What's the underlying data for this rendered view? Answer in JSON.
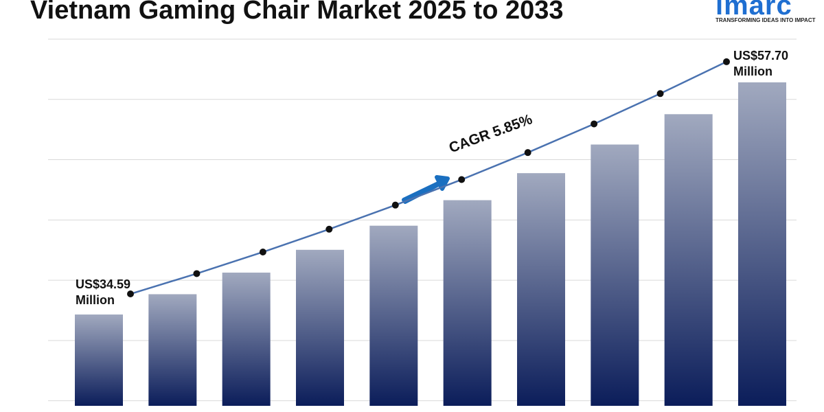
{
  "chart_data": {
    "type": "bar",
    "title": "Vietnam Gaming Chair Market 2025 to 2033",
    "annotation": "CAGR 5.85%",
    "categories": [
      null,
      null,
      null,
      null,
      null,
      null,
      null,
      null,
      null,
      null
    ],
    "values": [
      34.59,
      36.61,
      38.76,
      41.03,
      43.43,
      45.97,
      48.66,
      51.51,
      54.53,
      57.7
    ],
    "value_labels": [
      "US$34.59 Million",
      null,
      null,
      null,
      null,
      null,
      null,
      null,
      null,
      "US$57.70 Million"
    ],
    "colors": [
      "#a1a9bf",
      "#0b1d5a"
    ],
    "trend_line": true,
    "line_color": "#4a72b0",
    "ylim": [
      25.5,
      62
    ],
    "gridlines": [
      26,
      32,
      38,
      44,
      50,
      56,
      62
    ],
    "grid": true
  },
  "logo": {
    "name": "imarc",
    "tagline": "TRANSFORMING IDEAS INTO IMPACT"
  }
}
